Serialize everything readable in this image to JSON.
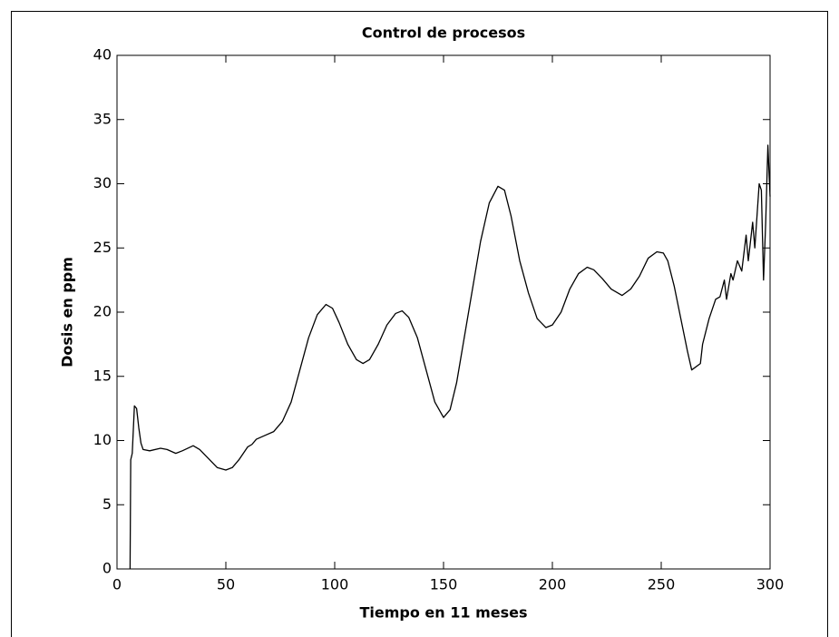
{
  "chart_data": {
    "type": "line",
    "title": "Control de procesos",
    "x_label": "Tiempo en 11 meses",
    "y_label": "Dosis en ppm",
    "xlim": [
      0,
      300
    ],
    "xticks": [
      0,
      50,
      100,
      150,
      200,
      250,
      300
    ],
    "ylim": [
      0,
      40
    ],
    "yticks": [
      0,
      5,
      10,
      15,
      20,
      25,
      30,
      35,
      40
    ],
    "grid": false,
    "x": [
      6,
      6.3,
      7,
      8,
      9,
      10,
      11,
      12,
      15,
      20,
      23,
      27,
      30,
      35,
      38,
      42,
      46,
      50,
      53,
      56,
      60,
      62,
      64,
      68,
      72,
      76,
      80,
      84,
      88,
      92,
      96,
      99,
      102,
      106,
      110,
      113,
      116,
      120,
      124,
      128,
      131,
      134,
      138,
      142,
      146,
      150,
      153,
      156,
      159,
      163,
      167,
      171,
      175,
      178,
      181,
      185,
      189,
      193,
      197,
      200,
      204,
      208,
      212,
      216,
      219,
      223,
      227,
      232,
      236,
      240,
      244,
      248,
      251,
      253,
      256,
      259,
      262,
      264,
      268,
      269,
      272,
      275,
      277,
      279,
      280,
      282,
      283,
      285,
      287,
      289,
      290,
      292,
      293,
      295,
      296,
      297,
      298,
      299,
      300
    ],
    "series": [
      {
        "color": "#000000",
        "values": [
          0,
          8.5,
          9,
          12.7,
          12.5,
          11,
          9.8,
          9.3,
          9.2,
          9.4,
          9.3,
          9.0,
          9.2,
          9.6,
          9.3,
          8.6,
          7.9,
          7.7,
          7.9,
          8.5,
          9.5,
          9.7,
          10.1,
          10.4,
          10.7,
          11.5,
          13,
          15.5,
          18,
          19.8,
          20.6,
          20.3,
          19.2,
          17.5,
          16.3,
          16.0,
          16.3,
          17.5,
          19.0,
          19.9,
          20.1,
          19.6,
          18,
          15.5,
          13,
          11.8,
          12.4,
          14.5,
          17.5,
          21.5,
          25.5,
          28.5,
          29.8,
          29.5,
          27.5,
          24,
          21.5,
          19.5,
          18.8,
          19,
          20,
          21.8,
          23,
          23.5,
          23.3,
          22.6,
          21.8,
          21.3,
          21.8,
          22.8,
          24.2,
          24.7,
          24.6,
          24,
          22,
          19.5,
          17,
          15.5,
          16,
          17.5,
          19.5,
          21,
          21.2,
          22.5,
          21,
          23,
          22.5,
          24,
          23.2,
          26,
          24,
          27,
          25,
          30,
          29.5,
          22.5,
          27,
          33,
          29
        ]
      }
    ]
  }
}
